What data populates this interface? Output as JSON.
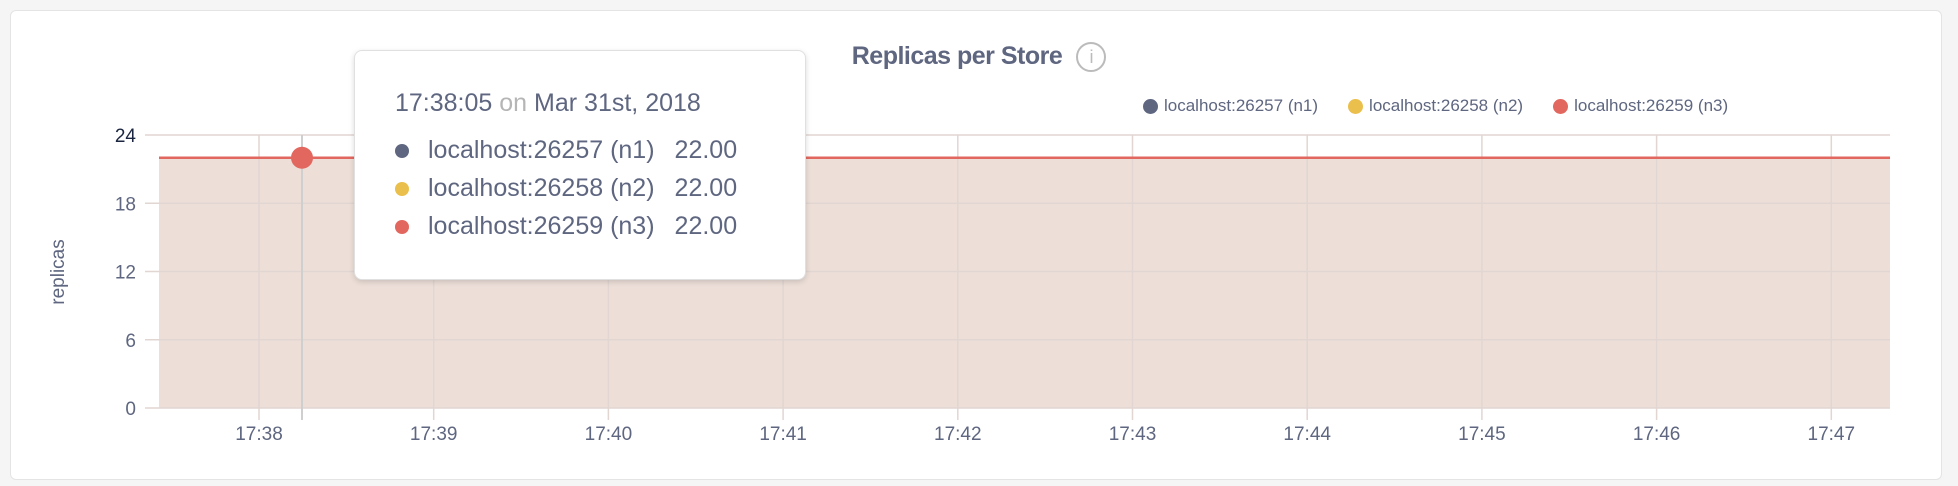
{
  "chart_data": {
    "type": "area",
    "title": "Replicas per Store",
    "ylabel": "replicas",
    "xlabel": "",
    "ylim": [
      0,
      24
    ],
    "yticks": [
      "0",
      "6",
      "12",
      "18",
      "24"
    ],
    "xticks": [
      "17:38",
      "17:39",
      "17:40",
      "17:41",
      "17:42",
      "17:43",
      "17:44",
      "17:45",
      "17:46",
      "17:47"
    ],
    "grid": true,
    "legend_position": "top-right",
    "series": [
      {
        "name": "localhost:26257 (n1)",
        "color": "#5e6680",
        "value": 22
      },
      {
        "name": "localhost:26258 (n2)",
        "color": "#eabf4b",
        "value": 22
      },
      {
        "name": "localhost:26259 (n3)",
        "color": "#e2675f",
        "value": 22
      }
    ]
  },
  "info_icon": "info-icon",
  "tooltip": {
    "time": "17:38:05",
    "on": "on",
    "date": "Mar 31st, 2018",
    "rows": [
      {
        "label": "localhost:26257 (n1)",
        "value": "22.00"
      },
      {
        "label": "localhost:26258 (n2)",
        "value": "22.00"
      },
      {
        "label": "localhost:26259 (n3)",
        "value": "22.00"
      }
    ]
  }
}
